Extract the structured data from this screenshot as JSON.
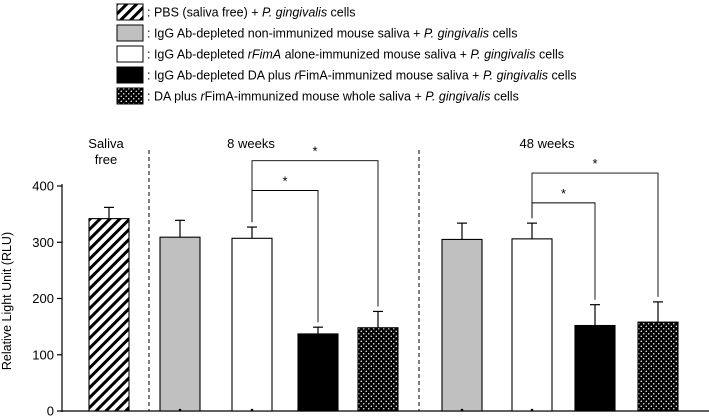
{
  "chart_data": {
    "type": "bar",
    "title": "",
    "xlabel": "",
    "ylabel": "Relative Light Unit (RLU)",
    "ylim": [
      0,
      400
    ],
    "yticks": [
      0,
      100,
      200,
      300,
      400
    ],
    "grid": false,
    "legend_position": "top",
    "groups": [
      {
        "label": "Saliva",
        "label2": "free"
      },
      {
        "label": "8 weeks"
      },
      {
        "label": "48 weeks"
      }
    ],
    "legend": [
      {
        "parts": [
          {
            "t": ": PBS (saliva free) + ",
            "i": false
          },
          {
            "t": "P. gingivalis",
            "i": true
          },
          {
            "t": " cells",
            "i": false
          }
        ]
      },
      {
        "parts": [
          {
            "t": ": IgG Ab-depleted non-immunized mouse saliva + ",
            "i": false
          },
          {
            "t": "P. gingivalis",
            "i": true
          },
          {
            "t": " cells",
            "i": false
          }
        ]
      },
      {
        "parts": [
          {
            "t": ": IgG Ab-depleted ",
            "i": false
          },
          {
            "t": "rFimA",
            "i": true
          },
          {
            "t": " alone-immunized mouse saliva + ",
            "i": false
          },
          {
            "t": "P. gingivalis",
            "i": true
          },
          {
            "t": " cells",
            "i": false
          }
        ]
      },
      {
        "parts": [
          {
            "t": ": IgG Ab-depleted DA plus ",
            "i": false
          },
          {
            "t": "r",
            "i": true
          },
          {
            "t": "FimA-immunized mouse saliva + ",
            "i": false
          },
          {
            "t": "P. gingivalis",
            "i": true
          },
          {
            "t": " cells",
            "i": false
          }
        ]
      },
      {
        "parts": [
          {
            "t": ": DA plus ",
            "i": false
          },
          {
            "t": "r",
            "i": true
          },
          {
            "t": "FimA-immunized mouse whole saliva + ",
            "i": false
          },
          {
            "t": "P. gingivalis",
            "i": true
          },
          {
            "t": " cells",
            "i": false
          }
        ]
      }
    ],
    "bars": [
      {
        "group": 0,
        "style": "hatch",
        "value": 342,
        "error": 20
      },
      {
        "group": 1,
        "style": "gray",
        "value": 309,
        "error": 30
      },
      {
        "group": 1,
        "style": "white",
        "value": 307,
        "error": 20
      },
      {
        "group": 1,
        "style": "black",
        "value": 137,
        "error": 12
      },
      {
        "group": 1,
        "style": "dotted",
        "value": 148,
        "error": 29
      },
      {
        "group": 2,
        "style": "gray",
        "value": 305,
        "error": 29
      },
      {
        "group": 2,
        "style": "white",
        "value": 306,
        "error": 28
      },
      {
        "group": 2,
        "style": "black",
        "value": 152,
        "error": 37
      },
      {
        "group": 2,
        "style": "dotted",
        "value": 158,
        "error": 36
      }
    ],
    "significance": [
      {
        "from": 2,
        "to": 3,
        "label": "*",
        "level": 392
      },
      {
        "from": 2,
        "to": 4,
        "label": "*",
        "level": 445
      },
      {
        "from": 6,
        "to": 7,
        "label": "*",
        "level": 370
      },
      {
        "from": 6,
        "to": 8,
        "label": "*",
        "level": 423
      }
    ]
  }
}
